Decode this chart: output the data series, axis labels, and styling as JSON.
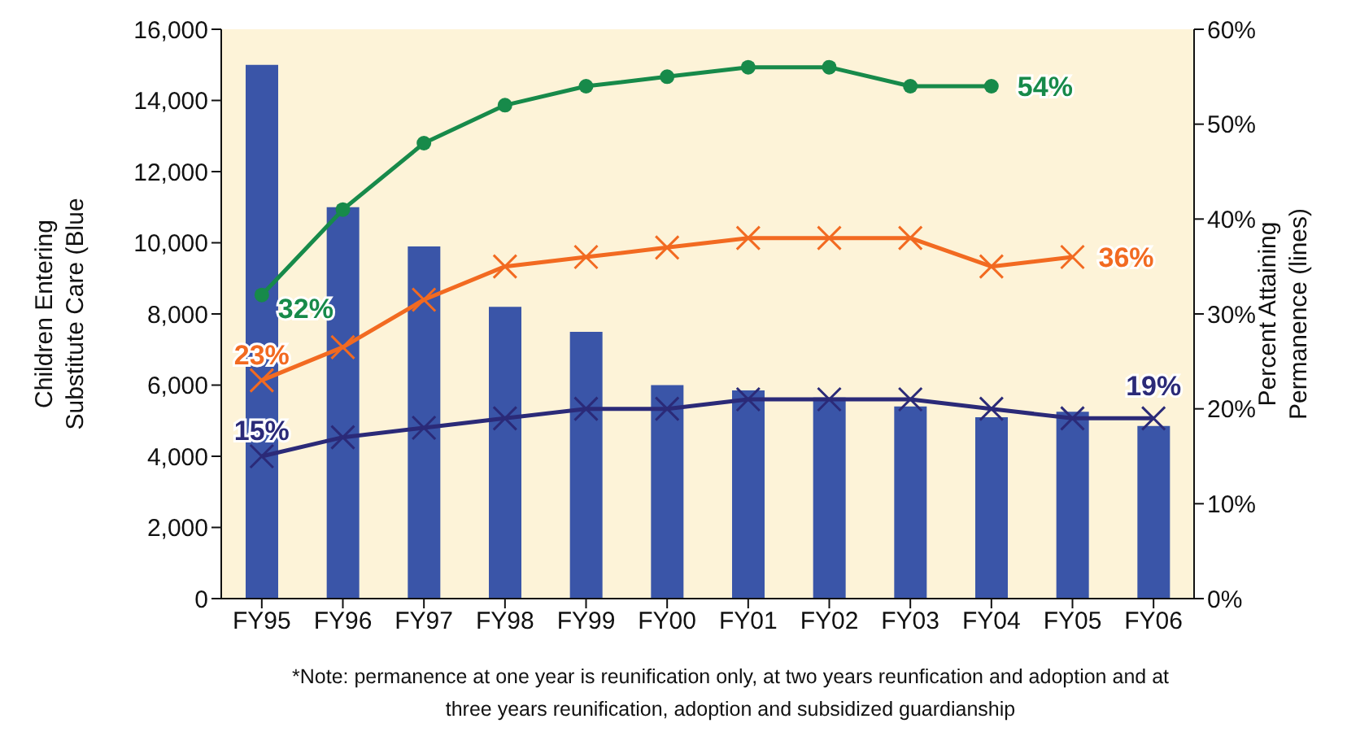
{
  "chart_data": {
    "type": "bar",
    "categories": [
      "FY95",
      "FY96",
      "FY97",
      "FY98",
      "FY99",
      "FY00",
      "FY01",
      "FY02",
      "FY03",
      "FY04",
      "FY05",
      "FY06"
    ],
    "ylabel": "Children Entering Substitute Care (Blue",
    "y2label": "Percent Attaining Permanence (lines)",
    "ylim": [
      0,
      16000
    ],
    "yticks": [
      {
        "value": 0,
        "label": "0"
      },
      {
        "value": 2000,
        "label": "2,000"
      },
      {
        "value": 4000,
        "label": "4,000"
      },
      {
        "value": 6000,
        "label": "6,000"
      },
      {
        "value": 8000,
        "label": "8,000"
      },
      {
        "value": 10000,
        "label": "10,000"
      },
      {
        "value": 12000,
        "label": "12,000"
      },
      {
        "value": 14000,
        "label": "14,000"
      },
      {
        "value": 16000,
        "label": "16,000"
      }
    ],
    "y2lim": [
      0,
      60
    ],
    "y2ticks": [
      {
        "value": 0,
        "label": "0%"
      },
      {
        "value": 10,
        "label": "10%"
      },
      {
        "value": 20,
        "label": "20%"
      },
      {
        "value": 30,
        "label": "30%"
      },
      {
        "value": 40,
        "label": "40%"
      },
      {
        "value": 50,
        "label": "50%"
      },
      {
        "value": 60,
        "label": "60%"
      }
    ],
    "series": [
      {
        "color": "#3a55a8",
        "values": [
          15000,
          11000,
          9900,
          8200,
          7500,
          6000,
          5850,
          5650,
          5400,
          5100,
          5250,
          4850
        ]
      },
      {
        "type": "line",
        "axis": "y2",
        "color": "#178a4a",
        "marker": "circle",
        "values": [
          32,
          41,
          48,
          52,
          54,
          55,
          56,
          56,
          54,
          54,
          null,
          null
        ],
        "value_labels": [
          "32%",
          null,
          null,
          null,
          null,
          null,
          null,
          null,
          null,
          "54%",
          null,
          null
        ]
      },
      {
        "type": "line",
        "axis": "y2",
        "color": "#f26a21",
        "marker": "cross",
        "values": [
          23,
          26.5,
          31.5,
          35,
          36,
          37,
          38,
          38,
          38,
          35,
          36,
          null
        ],
        "value_labels": [
          "23%",
          null,
          null,
          null,
          null,
          null,
          null,
          null,
          null,
          null,
          "36%",
          null
        ]
      },
      {
        "type": "line",
        "axis": "y2",
        "color": "#2b2a78",
        "marker": "cross",
        "values": [
          15,
          17,
          18,
          19,
          20,
          20,
          21,
          21,
          21,
          20,
          19,
          19
        ],
        "value_labels": [
          "15%",
          null,
          null,
          null,
          null,
          null,
          null,
          null,
          null,
          null,
          null,
          "19%"
        ]
      }
    ],
    "annotations": [
      "*Note: permanence at one year is reunification only, at two years reunfication and adoption and at three years reunification, adoption and subsidized guardianship"
    ],
    "grid": false,
    "legend": false
  }
}
